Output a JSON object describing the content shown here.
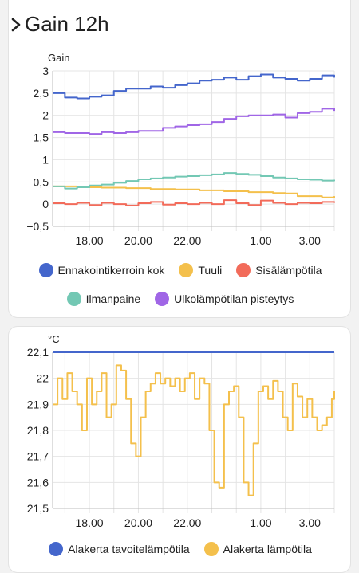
{
  "card1": {
    "title": "Gain 12h",
    "chevron": "chevron-right-icon"
  },
  "chart_data": [
    {
      "type": "line",
      "ylabel": "Gain",
      "ylim": [
        -0.5,
        3
      ],
      "yticks": [
        "3",
        "2,5",
        "2",
        "1,5",
        "1",
        "0,5",
        "0",
        "−0,5"
      ],
      "ytick_values": [
        3,
        2.5,
        2,
        1.5,
        1,
        0.5,
        0,
        -0.5
      ],
      "xlim": [
        16.5,
        28.0
      ],
      "xticks": [
        "18.00",
        "20.00",
        "22.00",
        "1.00",
        "3.00"
      ],
      "xtick_values": [
        18,
        20,
        22,
        25,
        27
      ],
      "grid": true,
      "legend_position": "bottom",
      "series": [
        {
          "name": "Ennakointikerroin kok",
          "color": "#4466cc",
          "x": [
            16.5,
            17.0,
            17.5,
            18.0,
            18.5,
            19.0,
            19.5,
            20.0,
            20.5,
            21.0,
            21.5,
            22.0,
            22.5,
            23.0,
            23.5,
            24.0,
            24.5,
            25.0,
            25.5,
            26.0,
            26.5,
            27.0,
            27.5,
            28.0
          ],
          "y": [
            2.5,
            2.4,
            2.38,
            2.42,
            2.45,
            2.55,
            2.6,
            2.6,
            2.65,
            2.62,
            2.68,
            2.72,
            2.78,
            2.8,
            2.85,
            2.8,
            2.88,
            2.92,
            2.85,
            2.82,
            2.78,
            2.82,
            2.9,
            2.85
          ]
        },
        {
          "name": "Tuuli",
          "color": "#f4c04c",
          "x": [
            16.5,
            17.5,
            18.5,
            19.5,
            20.5,
            21.5,
            22.5,
            23.5,
            24.5,
            25.5,
            26.0,
            26.5,
            27.5,
            28.0
          ],
          "y": [
            0.4,
            0.38,
            0.37,
            0.36,
            0.34,
            0.33,
            0.31,
            0.29,
            0.27,
            0.25,
            0.24,
            0.18,
            0.15,
            0.18
          ]
        },
        {
          "name": "Sisälämpötila",
          "color": "#f26b5a",
          "x": [
            16.5,
            17.0,
            17.5,
            18.0,
            18.5,
            19.0,
            19.5,
            20.0,
            20.5,
            21.0,
            21.5,
            22.0,
            22.5,
            23.0,
            23.5,
            24.0,
            24.5,
            25.0,
            25.5,
            26.0,
            26.5,
            27.0,
            27.5,
            28.0
          ],
          "y": [
            0.02,
            0.0,
            0.03,
            -0.02,
            0.03,
            0.0,
            -0.03,
            0.02,
            0.05,
            -0.01,
            0.02,
            0.0,
            0.03,
            0.0,
            0.09,
            0.02,
            -0.02,
            0.08,
            0.03,
            0.0,
            0.03,
            0.02,
            0.05,
            0.03
          ]
        },
        {
          "name": "Ilmanpaine",
          "color": "#73c8b4",
          "x": [
            16.5,
            17.0,
            17.5,
            18.0,
            18.5,
            19.0,
            19.5,
            20.0,
            20.5,
            21.0,
            21.5,
            22.0,
            22.5,
            23.0,
            23.5,
            24.0,
            24.5,
            25.0,
            25.5,
            26.0,
            26.5,
            27.0,
            27.5,
            28.0
          ],
          "y": [
            0.4,
            0.35,
            0.38,
            0.42,
            0.44,
            0.48,
            0.52,
            0.56,
            0.58,
            0.6,
            0.62,
            0.63,
            0.65,
            0.67,
            0.7,
            0.68,
            0.66,
            0.63,
            0.6,
            0.58,
            0.56,
            0.55,
            0.53,
            0.55
          ]
        },
        {
          "name": "Ulkolämpötilan pisteytys",
          "color": "#a066e6",
          "x": [
            16.5,
            17.0,
            17.5,
            18.0,
            18.5,
            19.0,
            19.5,
            20.0,
            20.5,
            21.0,
            21.5,
            22.0,
            22.5,
            23.0,
            23.5,
            24.0,
            24.5,
            25.0,
            25.5,
            26.0,
            26.5,
            27.0,
            27.5,
            28.0
          ],
          "y": [
            1.62,
            1.6,
            1.6,
            1.58,
            1.62,
            1.6,
            1.62,
            1.65,
            1.65,
            1.72,
            1.75,
            1.78,
            1.8,
            1.85,
            1.92,
            1.98,
            2.0,
            2.0,
            2.02,
            1.95,
            2.05,
            2.08,
            2.15,
            2.1
          ]
        }
      ]
    },
    {
      "type": "line",
      "ylabel": "°C",
      "ylim": [
        21.5,
        22.1
      ],
      "yticks": [
        "22,1",
        "22",
        "21,9",
        "21,8",
        "21,7",
        "21,6",
        "21,5"
      ],
      "ytick_values": [
        22.1,
        22.0,
        21.9,
        21.8,
        21.7,
        21.6,
        21.5
      ],
      "xlim": [
        16.5,
        28.0
      ],
      "xticks": [
        "18.00",
        "20.00",
        "22.00",
        "1.00",
        "3.00"
      ],
      "xtick_values": [
        18,
        20,
        22,
        25,
        27
      ],
      "grid": true,
      "legend_position": "bottom",
      "series": [
        {
          "name": "Alakerta tavoitelämpötila",
          "color": "#4466cc",
          "x": [
            16.5,
            28.0
          ],
          "y": [
            22.1,
            22.1
          ]
        },
        {
          "name": "Alakerta lämpötila",
          "color": "#f4c04c",
          "x": [
            16.5,
            16.7,
            16.9,
            17.1,
            17.3,
            17.5,
            17.7,
            17.9,
            18.1,
            18.3,
            18.5,
            18.7,
            18.9,
            19.1,
            19.3,
            19.5,
            19.7,
            19.9,
            20.1,
            20.3,
            20.5,
            20.7,
            20.9,
            21.1,
            21.3,
            21.5,
            21.7,
            21.9,
            22.1,
            22.3,
            22.5,
            22.7,
            22.9,
            23.1,
            23.3,
            23.5,
            23.7,
            23.9,
            24.1,
            24.3,
            24.5,
            24.7,
            24.9,
            25.1,
            25.3,
            25.5,
            25.7,
            25.9,
            26.1,
            26.3,
            26.5,
            26.7,
            26.9,
            27.1,
            27.3,
            27.5,
            27.7,
            27.9,
            28.0
          ],
          "y": [
            21.9,
            22.0,
            21.92,
            22.02,
            21.95,
            21.9,
            21.8,
            22.0,
            21.9,
            21.95,
            22.02,
            21.85,
            21.9,
            22.05,
            22.03,
            21.92,
            21.75,
            21.7,
            21.85,
            21.95,
            21.98,
            22.02,
            21.98,
            22.0,
            21.97,
            22.0,
            21.95,
            22.0,
            22.02,
            21.92,
            22.0,
            21.98,
            21.8,
            21.6,
            21.58,
            21.9,
            21.95,
            21.97,
            21.85,
            21.6,
            21.55,
            21.75,
            21.95,
            21.97,
            21.92,
            21.99,
            21.95,
            21.85,
            21.8,
            21.98,
            21.93,
            21.85,
            21.92,
            21.85,
            21.8,
            21.82,
            21.85,
            21.92,
            21.95
          ]
        }
      ]
    }
  ]
}
